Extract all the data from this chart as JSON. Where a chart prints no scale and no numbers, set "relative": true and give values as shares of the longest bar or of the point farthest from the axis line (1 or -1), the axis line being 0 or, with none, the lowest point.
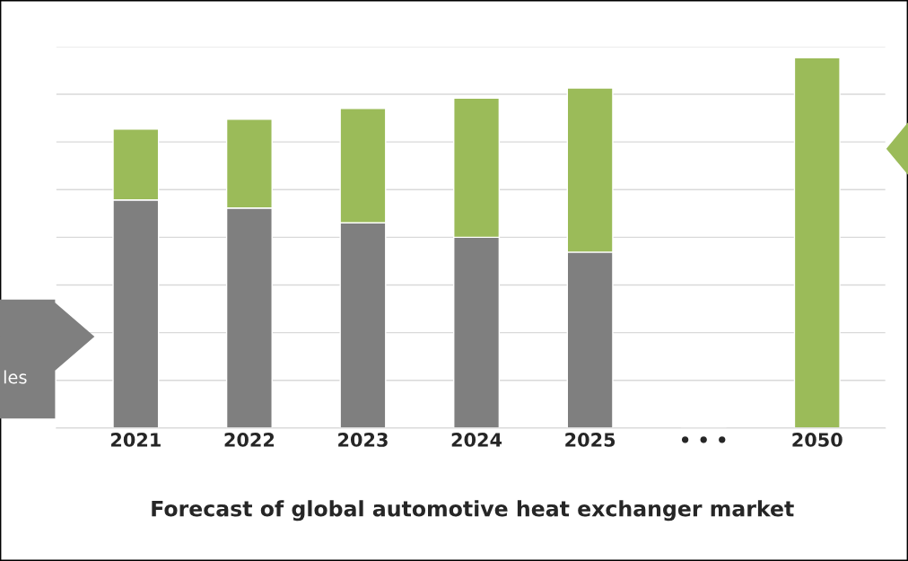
{
  "chart_data": {
    "type": "bar",
    "title": "Forecast of global automotive heat exchanger market",
    "categories": [
      "2021",
      "2022",
      "2023",
      "2024",
      "2025",
      "• • •",
      "2050"
    ],
    "stacked": true,
    "relative": true,
    "grid": "y",
    "legend": false,
    "series": [
      {
        "color": "#7f7f7f",
        "values": [
          0.616,
          0.594,
          0.554,
          0.515,
          0.475,
          null,
          0
        ]
      },
      {
        "color": "#9bbb59",
        "values": [
          0.191,
          0.24,
          0.309,
          0.376,
          0.443,
          null,
          1
        ]
      }
    ],
    "annotations": [
      "les"
    ]
  }
}
